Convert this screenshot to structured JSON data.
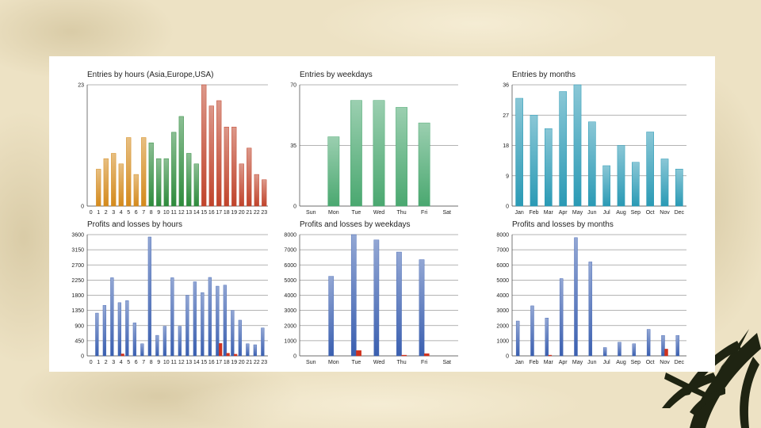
{
  "colors": {
    "background": "#ede2c4",
    "panel": "#ffffff",
    "grid": "#9a9a9a",
    "axis": "#555555",
    "orange": "#d48a1c",
    "green_dark": "#2e8b3c",
    "red": "#c0432b",
    "weekday_green": "#4aa870",
    "month_teal": "#2a9ab5",
    "profit_blue": "#3a5fb0",
    "loss_red": "#d0321e"
  },
  "chart_data": [
    {
      "type": "bar",
      "title": "Entries by hours (Asia,Europe,USA)",
      "categories": [
        "0",
        "1",
        "2",
        "3",
        "4",
        "5",
        "6",
        "7",
        "8",
        "9",
        "10",
        "11",
        "12",
        "13",
        "14",
        "15",
        "16",
        "17",
        "18",
        "19",
        "20",
        "21",
        "22",
        "23"
      ],
      "values": [
        0,
        7,
        9,
        10,
        8,
        13,
        6,
        13,
        12,
        9,
        9,
        14,
        17,
        10,
        8,
        23,
        19,
        20,
        15,
        15,
        8,
        11,
        6,
        5
      ],
      "bar_colors": [
        "orange",
        "orange",
        "orange",
        "orange",
        "orange",
        "orange",
        "orange",
        "orange",
        "green_dark",
        "green_dark",
        "green_dark",
        "green_dark",
        "green_dark",
        "green_dark",
        "green_dark",
        "red",
        "red",
        "red",
        "red",
        "red",
        "red",
        "red",
        "red",
        "red"
      ],
      "yticks": [
        0,
        23
      ],
      "ylim": [
        0,
        23
      ],
      "grid": true
    },
    {
      "type": "bar",
      "title": "Entries by weekdays",
      "categories": [
        "Sun",
        "Mon",
        "Tue",
        "Wed",
        "Thu",
        "Fri",
        "Sat"
      ],
      "values": [
        0,
        40,
        61,
        61,
        57,
        48,
        0
      ],
      "bar_colors": [
        "weekday_green",
        "weekday_green",
        "weekday_green",
        "weekday_green",
        "weekday_green",
        "weekday_green",
        "weekday_green"
      ],
      "yticks": [
        0,
        35,
        70
      ],
      "ylim": [
        0,
        70
      ],
      "grid": true
    },
    {
      "type": "bar",
      "title": "Entries by months",
      "categories": [
        "Jan",
        "Feb",
        "Mar",
        "Apr",
        "May",
        "Jun",
        "Jul",
        "Aug",
        "Sep",
        "Oct",
        "Nov",
        "Dec"
      ],
      "values": [
        32,
        27,
        23,
        34,
        36,
        25,
        12,
        18,
        13,
        22,
        14,
        11
      ],
      "bar_colors": [
        "month_teal",
        "month_teal",
        "month_teal",
        "month_teal",
        "month_teal",
        "month_teal",
        "month_teal",
        "month_teal",
        "month_teal",
        "month_teal",
        "month_teal",
        "month_teal"
      ],
      "yticks": [
        0,
        9,
        18,
        27,
        36
      ],
      "ylim": [
        0,
        36
      ],
      "grid": true
    },
    {
      "type": "bar",
      "title": "Profits and losses by hours",
      "categories": [
        "0",
        "1",
        "2",
        "3",
        "4",
        "5",
        "6",
        "7",
        "8",
        "9",
        "10",
        "11",
        "12",
        "13",
        "14",
        "15",
        "16",
        "17",
        "18",
        "19",
        "20",
        "21",
        "22",
        "23"
      ],
      "series": [
        {
          "values": [
            0,
            1270,
            1500,
            2320,
            1580,
            1640,
            980,
            360,
            3530,
            610,
            880,
            2320,
            880,
            1800,
            2200,
            1880,
            2330,
            2070,
            2100,
            1350,
            1060,
            360,
            330,
            830
          ]
        },
        {
          "values": [
            0,
            0,
            0,
            0,
            60,
            0,
            0,
            0,
            0,
            0,
            0,
            0,
            0,
            0,
            0,
            0,
            0,
            370,
            80,
            50,
            0,
            0,
            0,
            0
          ]
        }
      ],
      "series_colors": [
        "profit_blue",
        "loss_red"
      ],
      "yticks": [
        0,
        450,
        900,
        1350,
        1800,
        2250,
        2700,
        3150,
        3600
      ],
      "ylim": [
        0,
        3600
      ],
      "grid": true
    },
    {
      "type": "bar",
      "title": "Profits and losses by weekdays",
      "categories": [
        "Sun",
        "Mon",
        "Tue",
        "Wed",
        "Thu",
        "Fri",
        "Sat"
      ],
      "series": [
        {
          "values": [
            0,
            5250,
            8000,
            7650,
            6850,
            6350,
            0
          ]
        },
        {
          "values": [
            0,
            0,
            350,
            0,
            50,
            150,
            0
          ]
        }
      ],
      "series_colors": [
        "profit_blue",
        "loss_red"
      ],
      "yticks": [
        0,
        1000,
        2000,
        3000,
        4000,
        5000,
        6000,
        7000,
        8000
      ],
      "ylim": [
        0,
        8000
      ],
      "grid": true
    },
    {
      "type": "bar",
      "title": "Profits and losses by months",
      "categories": [
        "Jan",
        "Feb",
        "Mar",
        "Apr",
        "May",
        "Jun",
        "Jul",
        "Aug",
        "Sep",
        "Oct",
        "Nov",
        "Dec"
      ],
      "series": [
        {
          "values": [
            2300,
            3300,
            2500,
            5100,
            7800,
            6200,
            550,
            900,
            800,
            1750,
            1350,
            1350
          ]
        },
        {
          "values": [
            0,
            0,
            50,
            0,
            0,
            0,
            0,
            0,
            0,
            0,
            450,
            0
          ]
        }
      ],
      "series_colors": [
        "profit_blue",
        "loss_red"
      ],
      "yticks": [
        0,
        1000,
        2000,
        3000,
        4000,
        5000,
        6000,
        7000,
        8000
      ],
      "ylim": [
        0,
        8000
      ],
      "grid": true
    }
  ]
}
